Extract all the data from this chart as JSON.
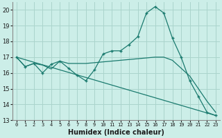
{
  "xlabel": "Humidex (Indice chaleur)",
  "bg_color": "#cceee8",
  "grid_color": "#aad4cc",
  "line_color": "#1a7a6e",
  "xlim": [
    -0.5,
    23.5
  ],
  "ylim": [
    13,
    20.5
  ],
  "yticks": [
    13,
    14,
    15,
    16,
    17,
    18,
    19,
    20
  ],
  "xticks": [
    0,
    1,
    2,
    3,
    4,
    5,
    6,
    7,
    8,
    9,
    10,
    11,
    12,
    13,
    14,
    15,
    16,
    17,
    18,
    19,
    20,
    21,
    22,
    23
  ],
  "line1_x": [
    0,
    1,
    2,
    3,
    4,
    5,
    6,
    7,
    8,
    9,
    10,
    11,
    12,
    13,
    14,
    15,
    16,
    17,
    18,
    19,
    20,
    21,
    22,
    23
  ],
  "line1_y": [
    17.0,
    16.4,
    16.6,
    16.0,
    16.55,
    16.75,
    16.3,
    15.85,
    15.5,
    16.2,
    17.2,
    17.4,
    17.4,
    17.8,
    18.3,
    19.8,
    20.2,
    19.8,
    18.2,
    17.0,
    15.5,
    14.5,
    13.5,
    13.3
  ],
  "line2_x": [
    0,
    1,
    2,
    3,
    4,
    5,
    6,
    7,
    8,
    9,
    10,
    11,
    12,
    13,
    14,
    15,
    16,
    17,
    18,
    19,
    20,
    21,
    22,
    23
  ],
  "line2_y": [
    17.0,
    16.4,
    16.6,
    16.5,
    16.25,
    16.75,
    16.6,
    16.6,
    16.6,
    16.65,
    16.7,
    16.75,
    16.8,
    16.85,
    16.9,
    16.95,
    17.0,
    17.0,
    16.8,
    16.3,
    15.8,
    15.0,
    14.2,
    13.5
  ],
  "line3_x": [
    0,
    23
  ],
  "line3_y": [
    17.0,
    13.3
  ]
}
